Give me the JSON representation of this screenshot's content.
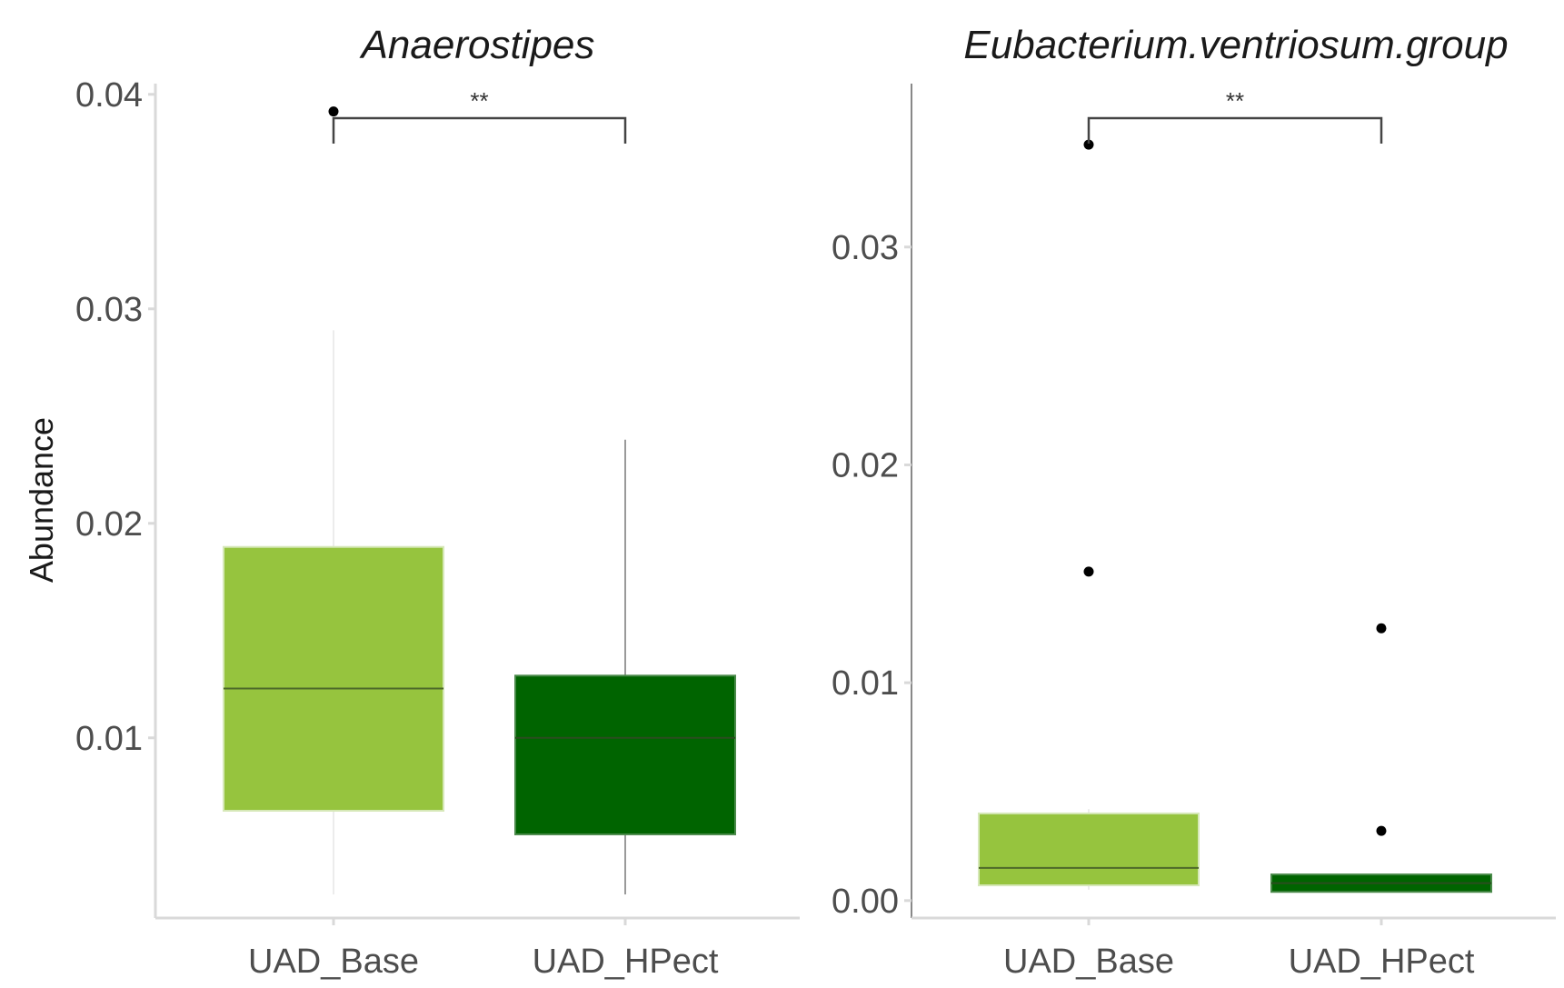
{
  "chart_data": [
    {
      "type": "box",
      "title": "Anaerostipes",
      "xlabel": "",
      "ylabel": "Abundance",
      "categories": [
        "UAD_Base",
        "UAD_HPect"
      ],
      "ylim": [
        0.0016,
        0.0405
      ],
      "yticks": [
        0.01,
        0.02,
        0.03,
        0.04
      ],
      "ytick_labels": [
        "0.01",
        "0.02",
        "0.03",
        "0.04"
      ],
      "boxes": [
        {
          "category": "UAD_Base",
          "whisker_low": 0.0027,
          "q1": 0.0066,
          "median": 0.0123,
          "q3": 0.0189,
          "whisker_high": 0.029,
          "outliers": [
            0.0392
          ],
          "color": "#96c43e"
        },
        {
          "category": "UAD_HPect",
          "whisker_low": 0.0027,
          "q1": 0.0055,
          "median": 0.01,
          "q3": 0.0129,
          "whisker_high": 0.0239,
          "outliers": [],
          "color": "#006400"
        }
      ],
      "significance": {
        "groups": [
          "UAD_Base",
          "UAD_HPect"
        ],
        "label": "**"
      },
      "grid": false
    },
    {
      "type": "box",
      "title": "Eubacterium.ventriosum.group",
      "xlabel": "",
      "ylabel": "",
      "categories": [
        "UAD_Base",
        "UAD_HPect"
      ],
      "ylim": [
        -0.0008,
        0.0375
      ],
      "yticks": [
        0.0,
        0.01,
        0.02,
        0.03
      ],
      "ytick_labels": [
        "0.00",
        "0.01",
        "0.02",
        "0.03"
      ],
      "boxes": [
        {
          "category": "UAD_Base",
          "whisker_low": 0.0005,
          "q1": 0.0007,
          "median": 0.0015,
          "q3": 0.004,
          "whisker_high": 0.0042,
          "outliers": [
            0.0347,
            0.0151
          ],
          "color": "#96c43e"
        },
        {
          "category": "UAD_HPect",
          "whisker_low": 0.0004,
          "q1": 0.0004,
          "median": 0.0008,
          "q3": 0.0012,
          "whisker_high": 0.0012,
          "outliers": [
            0.0125,
            0.0032
          ],
          "color": "#006400"
        }
      ],
      "significance": {
        "groups": [
          "UAD_Base",
          "UAD_HPect"
        ],
        "label": "**"
      },
      "grid": false
    }
  ]
}
